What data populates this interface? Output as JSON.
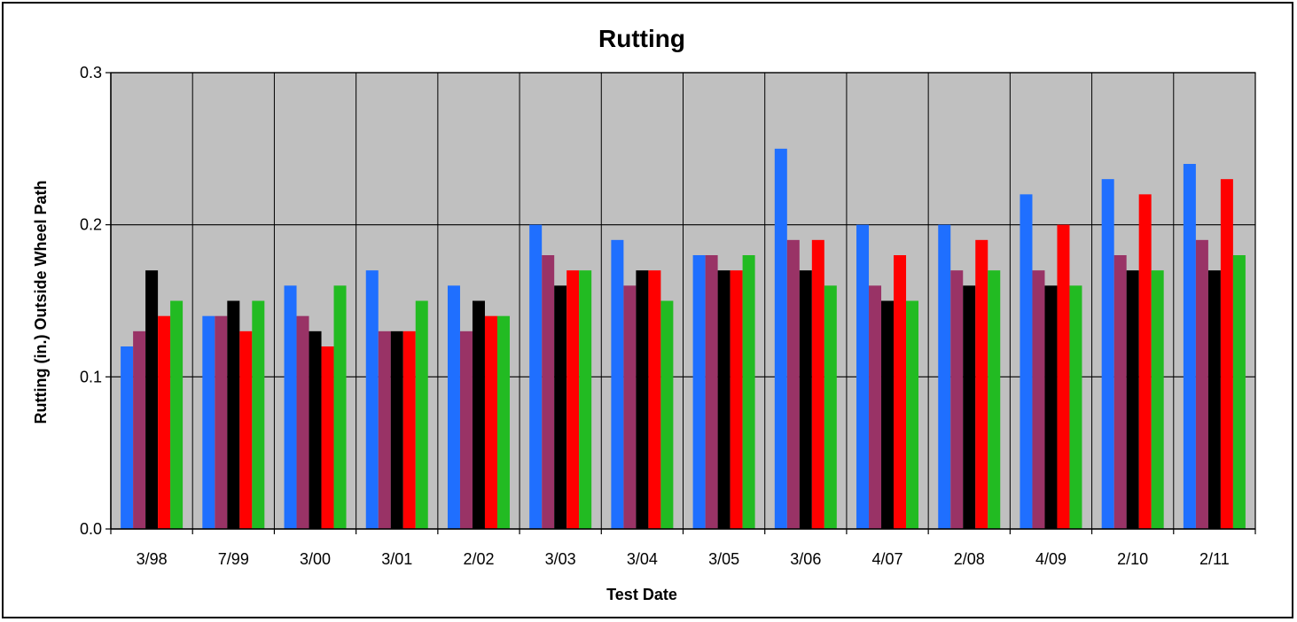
{
  "chart_data": {
    "type": "bar",
    "title": "Rutting",
    "xlabel": "Test Date",
    "ylabel": "Rutting (in.) Outside Wheel Path",
    "ylim": [
      0,
      0.3
    ],
    "yticks": [
      "0.0",
      "0.1",
      "0.2",
      "0.3"
    ],
    "grid": true,
    "legend": "none",
    "categories": [
      "3/98",
      "7/99",
      "3/00",
      "3/01",
      "2/02",
      "3/03",
      "3/04",
      "3/05",
      "3/06",
      "4/07",
      "2/08",
      "4/09",
      "2/10",
      "2/11"
    ],
    "series": [
      {
        "color": "#1f6fff",
        "values": [
          0.12,
          0.14,
          0.16,
          0.17,
          0.16,
          0.2,
          0.19,
          0.18,
          0.25,
          0.2,
          0.2,
          0.22,
          0.23,
          0.24
        ]
      },
      {
        "color": "#993366",
        "values": [
          0.13,
          0.14,
          0.14,
          0.13,
          0.13,
          0.18,
          0.16,
          0.18,
          0.19,
          0.16,
          0.17,
          0.17,
          0.18,
          0.19
        ]
      },
      {
        "color": "#000000",
        "values": [
          0.17,
          0.15,
          0.13,
          0.13,
          0.15,
          0.16,
          0.17,
          0.17,
          0.17,
          0.15,
          0.16,
          0.16,
          0.17,
          0.17
        ]
      },
      {
        "color": "#ff0000",
        "values": [
          0.14,
          0.13,
          0.12,
          0.13,
          0.14,
          0.17,
          0.17,
          0.17,
          0.19,
          0.18,
          0.19,
          0.2,
          0.22,
          0.23
        ]
      },
      {
        "color": "#22bb22",
        "values": [
          0.15,
          0.15,
          0.16,
          0.15,
          0.14,
          0.17,
          0.15,
          0.18,
          0.16,
          0.15,
          0.17,
          0.16,
          0.17,
          0.18
        ]
      }
    ],
    "plot_background": "#c0c0c0"
  }
}
